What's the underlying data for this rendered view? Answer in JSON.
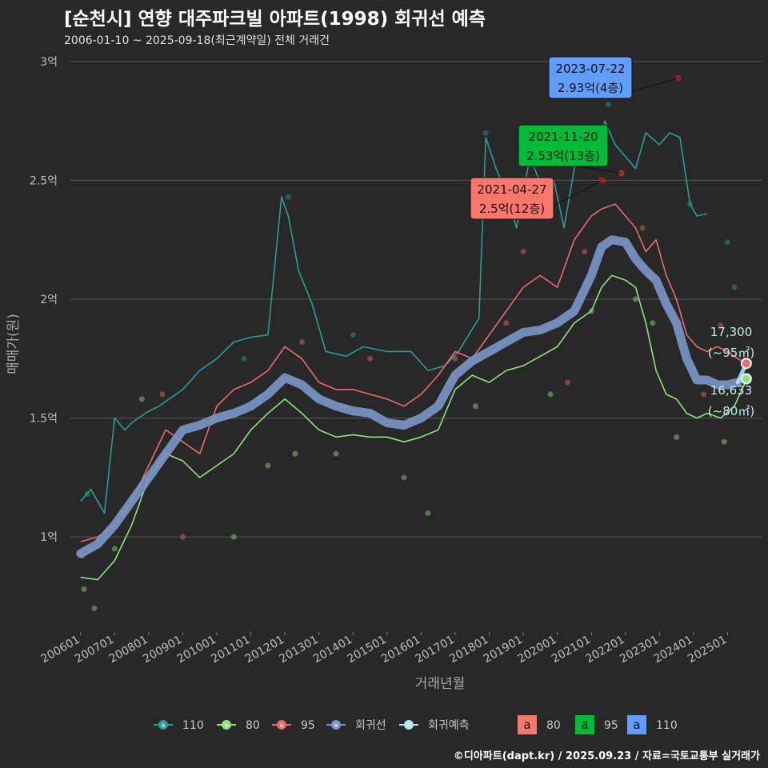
{
  "title": "[순천시] 연향 대주파크빌 아파트(1998) 회귀선 예측",
  "subtitle": "2006-01-10 ~ 2025-09-18(최근계약일) 전체 거래건",
  "caption": "©디아파트(dapt.kr) / 2025.09.23 / 자료=국토교통부 실거래가",
  "colors": {
    "background": "#282828",
    "s110": "#2a9d9b",
    "s80": "#8fe27e",
    "s95": "#f0686c",
    "regression": "#7b96c8",
    "forecast": "#a8e6e8",
    "ann80": "#f8766d",
    "ann95": "#00ba38",
    "ann110": "#619cff"
  },
  "chart_data": {
    "type": "line",
    "xlabel": "거래년월",
    "ylabel": "매매가(원)",
    "x_ticks": [
      "200601",
      "200701",
      "200801",
      "200901",
      "201001",
      "201101",
      "201201",
      "201301",
      "201401",
      "201501",
      "201601",
      "201701",
      "201801",
      "201901",
      "202001",
      "202101",
      "202201",
      "202301",
      "202401",
      "202501"
    ],
    "y_ticks": [
      {
        "value": 1.0,
        "label": "1억"
      },
      {
        "value": 1.5,
        "label": "1.5억"
      },
      {
        "value": 2.0,
        "label": "2억"
      },
      {
        "value": 2.5,
        "label": "2.5억"
      },
      {
        "value": 3.0,
        "label": "3억"
      }
    ],
    "ylim": [
      0.6,
      3.05
    ],
    "xlim": [
      2005.7,
      2026.0
    ],
    "series": [
      {
        "name": "110",
        "color_key": "s110",
        "x": [
          2006.0,
          2006.3,
          2006.7,
          2007.0,
          2007.3,
          2007.5,
          2007.9,
          2008.3,
          2009.0,
          2009.5,
          2010.0,
          2010.5,
          2011.0,
          2011.5,
          2011.9,
          2012.1,
          2012.4,
          2012.8,
          2013.2,
          2013.8,
          2014.3,
          2015.0,
          2015.7,
          2016.2,
          2016.7,
          2017.1,
          2017.4,
          2017.7,
          2017.9,
          2018.2,
          2018.5,
          2018.8,
          2019.2,
          2019.6,
          2019.9,
          2020.2,
          2020.5,
          2020.8,
          2021.1,
          2021.4,
          2021.7,
          2022.0,
          2022.3,
          2022.6,
          2023.0,
          2023.3,
          2023.6,
          2023.9,
          2024.1,
          2024.4
        ],
        "y": [
          1.15,
          1.2,
          1.1,
          1.5,
          1.45,
          1.48,
          1.52,
          1.55,
          1.62,
          1.7,
          1.75,
          1.82,
          1.84,
          1.85,
          2.43,
          2.35,
          2.12,
          1.98,
          1.78,
          1.76,
          1.8,
          1.78,
          1.78,
          1.7,
          1.72,
          1.78,
          1.85,
          1.92,
          2.68,
          2.55,
          2.45,
          2.3,
          2.6,
          2.45,
          2.5,
          2.3,
          2.55,
          2.7,
          2.63,
          2.75,
          2.65,
          2.6,
          2.55,
          2.7,
          2.65,
          2.7,
          2.68,
          2.4,
          2.35,
          2.36
        ]
      },
      {
        "name": "80",
        "color_key": "s80",
        "x": [
          2006.0,
          2006.5,
          2007.0,
          2007.5,
          2008.0,
          2008.5,
          2009.0,
          2009.5,
          2010.0,
          2010.5,
          2011.0,
          2011.5,
          2012.0,
          2012.5,
          2013.0,
          2013.5,
          2014.0,
          2014.5,
          2015.0,
          2015.5,
          2016.0,
          2016.5,
          2017.0,
          2017.5,
          2018.0,
          2018.5,
          2019.0,
          2019.5,
          2020.0,
          2020.5,
          2021.0,
          2021.3,
          2021.6,
          2022.0,
          2022.3,
          2022.6,
          2022.9,
          2023.2,
          2023.5,
          2023.8,
          2024.1,
          2024.4,
          2024.8,
          2025.2,
          2025.55
        ],
        "y": [
          0.83,
          0.82,
          0.9,
          1.05,
          1.25,
          1.35,
          1.32,
          1.25,
          1.3,
          1.35,
          1.45,
          1.52,
          1.58,
          1.52,
          1.45,
          1.42,
          1.43,
          1.42,
          1.42,
          1.4,
          1.42,
          1.45,
          1.62,
          1.68,
          1.65,
          1.7,
          1.72,
          1.76,
          1.8,
          1.9,
          1.95,
          2.05,
          2.1,
          2.08,
          2.05,
          1.9,
          1.7,
          1.6,
          1.58,
          1.52,
          1.5,
          1.52,
          1.5,
          1.55,
          1.66
        ]
      },
      {
        "name": "95",
        "color_key": "s95",
        "x": [
          2006.0,
          2006.5,
          2007.0,
          2007.5,
          2008.0,
          2008.5,
          2009.0,
          2009.5,
          2010.0,
          2010.5,
          2011.0,
          2011.5,
          2012.0,
          2012.5,
          2013.0,
          2013.5,
          2014.0,
          2014.5,
          2015.0,
          2015.5,
          2016.0,
          2016.5,
          2017.0,
          2017.5,
          2018.0,
          2018.5,
          2019.0,
          2019.5,
          2020.0,
          2020.5,
          2021.0,
          2021.3,
          2021.7,
          2022.0,
          2022.3,
          2022.6,
          2022.9,
          2023.2,
          2023.5,
          2023.8,
          2024.1,
          2024.4,
          2024.7,
          2025.0,
          2025.3,
          2025.55
        ],
        "y": [
          0.98,
          1.0,
          1.05,
          1.15,
          1.3,
          1.45,
          1.4,
          1.35,
          1.55,
          1.62,
          1.65,
          1.7,
          1.8,
          1.75,
          1.65,
          1.62,
          1.62,
          1.6,
          1.58,
          1.55,
          1.6,
          1.68,
          1.78,
          1.75,
          1.85,
          1.95,
          2.05,
          2.1,
          2.05,
          2.25,
          2.35,
          2.38,
          2.4,
          2.35,
          2.3,
          2.2,
          2.25,
          2.1,
          2.0,
          1.85,
          1.8,
          1.78,
          1.8,
          1.78,
          1.75,
          1.73
        ]
      },
      {
        "name": "회귀선",
        "color_key": "regression",
        "x": [
          2006.0,
          2006.5,
          2007.0,
          2007.5,
          2008.0,
          2008.5,
          2009.0,
          2009.5,
          2010.0,
          2010.5,
          2011.0,
          2011.5,
          2012.0,
          2012.5,
          2013.0,
          2013.5,
          2014.0,
          2014.5,
          2015.0,
          2015.5,
          2016.0,
          2016.5,
          2017.0,
          2017.5,
          2018.0,
          2018.5,
          2019.0,
          2019.5,
          2020.0,
          2020.5,
          2021.0,
          2021.3,
          2021.6,
          2022.0,
          2022.3,
          2022.6,
          2022.9,
          2023.2,
          2023.5,
          2023.8,
          2024.1,
          2024.4,
          2024.7,
          2025.0,
          2025.3
        ],
        "y": [
          0.93,
          0.97,
          1.05,
          1.15,
          1.25,
          1.35,
          1.45,
          1.47,
          1.5,
          1.52,
          1.55,
          1.6,
          1.67,
          1.64,
          1.58,
          1.55,
          1.53,
          1.52,
          1.48,
          1.47,
          1.5,
          1.55,
          1.68,
          1.74,
          1.78,
          1.82,
          1.86,
          1.87,
          1.9,
          1.95,
          2.1,
          2.22,
          2.25,
          2.24,
          2.17,
          2.12,
          2.08,
          1.98,
          1.9,
          1.75,
          1.66,
          1.66,
          1.64,
          1.64,
          1.65
        ]
      },
      {
        "name": "회귀예측",
        "color_key": "forecast",
        "x": [
          2025.3,
          2025.55
        ],
        "y": [
          1.65,
          1.73
        ]
      }
    ],
    "scatter": [
      {
        "x": 2006.05,
        "y": 0.92,
        "series": "95"
      },
      {
        "x": 2006.1,
        "y": 0.78,
        "series": "80"
      },
      {
        "x": 2006.2,
        "y": 1.18,
        "series": "110"
      },
      {
        "x": 2006.4,
        "y": 0.7,
        "series": "80"
      },
      {
        "x": 2007.0,
        "y": 0.95,
        "series": "80"
      },
      {
        "x": 2007.2,
        "y": 1.1,
        "series": "95"
      },
      {
        "x": 2007.8,
        "y": 1.58,
        "series": "80"
      },
      {
        "x": 2008.4,
        "y": 1.6,
        "series": "95"
      },
      {
        "x": 2009.0,
        "y": 1.0,
        "series": "95"
      },
      {
        "x": 2010.5,
        "y": 1.0,
        "series": "80"
      },
      {
        "x": 2010.8,
        "y": 1.75,
        "series": "110"
      },
      {
        "x": 2011.5,
        "y": 1.3,
        "series": "80"
      },
      {
        "x": 2012.1,
        "y": 2.43,
        "series": "110"
      },
      {
        "x": 2012.3,
        "y": 1.35,
        "series": "80"
      },
      {
        "x": 2012.5,
        "y": 1.82,
        "series": "95"
      },
      {
        "x": 2013.5,
        "y": 1.35,
        "series": "80"
      },
      {
        "x": 2014.0,
        "y": 1.85,
        "series": "110"
      },
      {
        "x": 2014.5,
        "y": 1.75,
        "series": "95"
      },
      {
        "x": 2015.5,
        "y": 1.25,
        "series": "80"
      },
      {
        "x": 2016.2,
        "y": 1.1,
        "series": "80"
      },
      {
        "x": 2017.0,
        "y": 1.75,
        "series": "95"
      },
      {
        "x": 2017.6,
        "y": 1.55,
        "series": "80"
      },
      {
        "x": 2017.9,
        "y": 2.7,
        "series": "110"
      },
      {
        "x": 2018.5,
        "y": 1.9,
        "series": "95"
      },
      {
        "x": 2019.0,
        "y": 2.2,
        "series": "95"
      },
      {
        "x": 2019.4,
        "y": 2.45,
        "series": "110"
      },
      {
        "x": 2019.8,
        "y": 1.6,
        "series": "80"
      },
      {
        "x": 2020.3,
        "y": 1.65,
        "series": "95"
      },
      {
        "x": 2020.8,
        "y": 2.2,
        "series": "95"
      },
      {
        "x": 2021.0,
        "y": 1.95,
        "series": "80"
      },
      {
        "x": 2021.32,
        "y": 2.5,
        "series": "95"
      },
      {
        "x": 2021.5,
        "y": 2.82,
        "series": "110"
      },
      {
        "x": 2021.88,
        "y": 2.53,
        "series": "80"
      },
      {
        "x": 2022.3,
        "y": 2.0,
        "series": "80"
      },
      {
        "x": 2022.5,
        "y": 2.3,
        "series": "95"
      },
      {
        "x": 2022.8,
        "y": 1.9,
        "series": "80"
      },
      {
        "x": 2023.2,
        "y": 2.0,
        "series": "95"
      },
      {
        "x": 2023.55,
        "y": 2.93,
        "series": "110"
      },
      {
        "x": 2023.5,
        "y": 1.42,
        "series": "80"
      },
      {
        "x": 2023.9,
        "y": 2.4,
        "series": "110"
      },
      {
        "x": 2024.3,
        "y": 1.6,
        "series": "95"
      },
      {
        "x": 2024.8,
        "y": 1.89,
        "series": "95"
      },
      {
        "x": 2024.9,
        "y": 1.4,
        "series": "80"
      },
      {
        "x": 2025.2,
        "y": 2.05,
        "series": "110"
      },
      {
        "x": 2025.0,
        "y": 2.24,
        "series": "110"
      }
    ],
    "endpoints": [
      {
        "x": 2025.55,
        "y": 1.73,
        "color_key": "s95"
      },
      {
        "x": 2025.55,
        "y": 1.665,
        "color_key": "s80"
      }
    ],
    "annotations": [
      {
        "date": "2021-04-27",
        "text": "2.5억(12층)",
        "x": 2021.32,
        "y": 2.5,
        "color_key": "ann80"
      },
      {
        "date": "2021-11-20",
        "text": "2.53억(13층)",
        "x": 2021.88,
        "y": 2.53,
        "color_key": "ann95"
      },
      {
        "date": "2023-07-22",
        "text": "2.93억(4층)",
        "x": 2023.55,
        "y": 2.93,
        "color_key": "ann110"
      }
    ],
    "end_labels": [
      {
        "value": "17,300",
        "sub": "(~95㎡)"
      },
      {
        "value": "16,633",
        "sub": "(~80㎡)"
      }
    ],
    "legend": {
      "lines": [
        {
          "label": "110",
          "color_key": "s110"
        },
        {
          "label": "80",
          "color_key": "s80"
        },
        {
          "label": "95",
          "color_key": "s95"
        },
        {
          "label": "회귀선",
          "color_key": "regression"
        },
        {
          "label": "회귀예측",
          "color_key": "forecast"
        }
      ],
      "boxes": [
        {
          "glyph": "a",
          "label": "80",
          "color_key": "ann80"
        },
        {
          "glyph": "a",
          "label": "95",
          "color_key": "ann95"
        },
        {
          "glyph": "a",
          "label": "110",
          "color_key": "ann110"
        }
      ]
    }
  }
}
